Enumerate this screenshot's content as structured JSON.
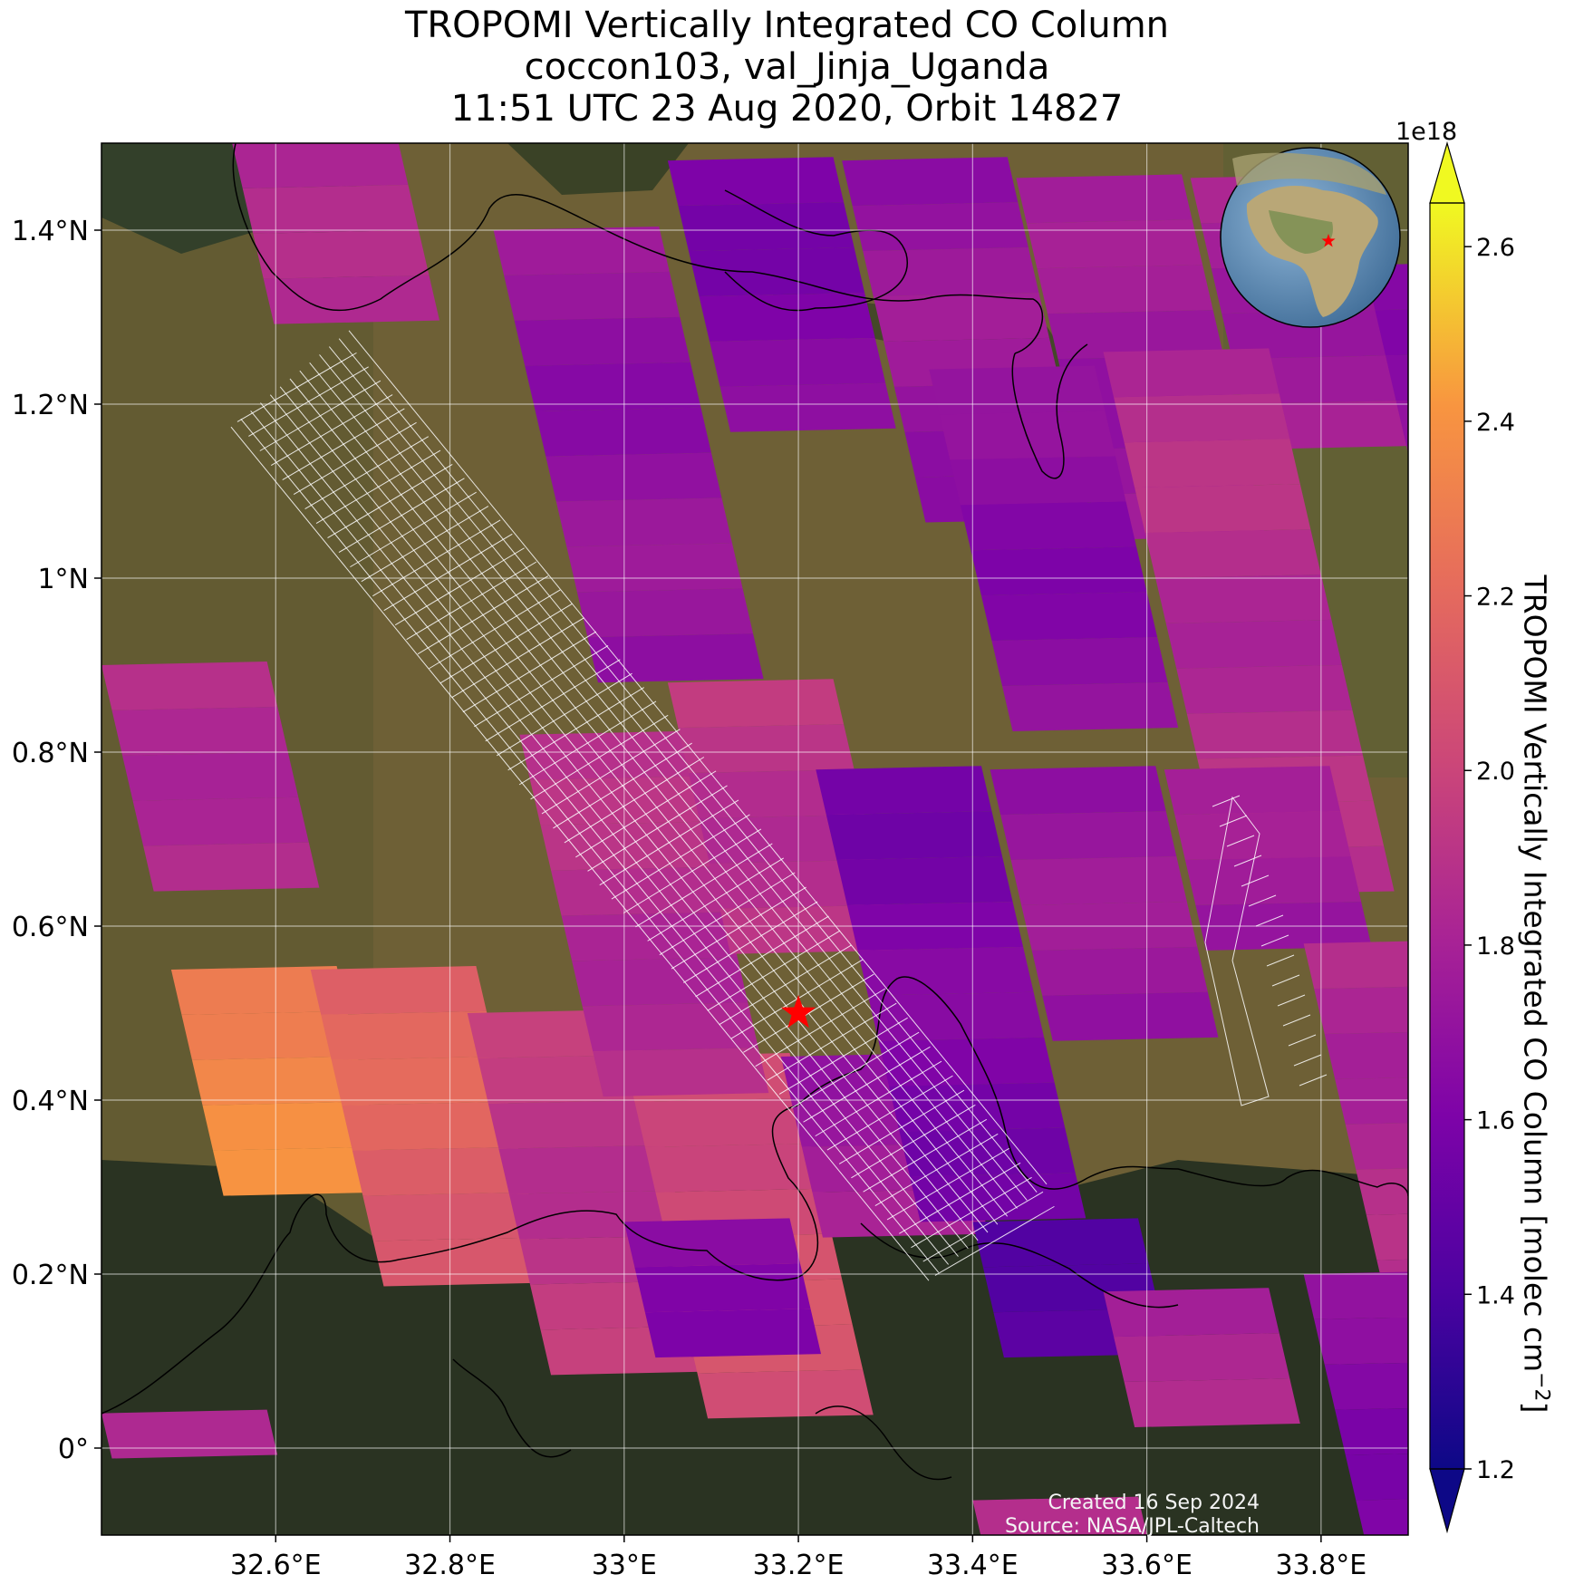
{
  "title": {
    "line1": "TROPOMI Vertically Integrated CO Column",
    "line2": "coccon103, val_Jinja_Uganda",
    "line3": "11:51 UTC 23 Aug 2020, Orbit 14827"
  },
  "map": {
    "lon_range": [
      32.4,
      33.9
    ],
    "lat_range": [
      -0.1,
      1.5
    ],
    "x_ticks": [
      "32.6°E",
      "32.8°E",
      "33°E",
      "33.2°E",
      "33.4°E",
      "33.6°E",
      "33.8°E"
    ],
    "y_ticks": [
      "1.4°N",
      "1.2°N",
      "1°N",
      "0.8°N",
      "0.6°N",
      "0.4°N",
      "0.2°N",
      "0°"
    ],
    "site_marker": {
      "name": "val_Jinja_Uganda",
      "lon": 33.2,
      "lat": 0.5,
      "symbol": "star",
      "color": "#ff0000"
    },
    "background": "satellite imagery with coastlines (Lake Victoria, Lake Kyoga)",
    "pixel_colors_legend": "TROPOMI CO column pixels colored by plasma colormap"
  },
  "colorbar": {
    "label": "TROPOMI Vertically Integrated CO Column [molec cm",
    "label_sup": "−2",
    "label_end": "]",
    "exponent": "1e18",
    "ticks": [
      "2.6",
      "2.4",
      "2.2",
      "2.0",
      "1.8",
      "1.6",
      "1.4",
      "1.2"
    ],
    "range": [
      1.2,
      2.65
    ],
    "colormap": "plasma"
  },
  "inset": {
    "type": "globe",
    "marker_color": "#ff0000"
  },
  "credits": {
    "created": "Created 16 Sep 2024",
    "source": "Source: NASA/JPL-Caltech"
  }
}
